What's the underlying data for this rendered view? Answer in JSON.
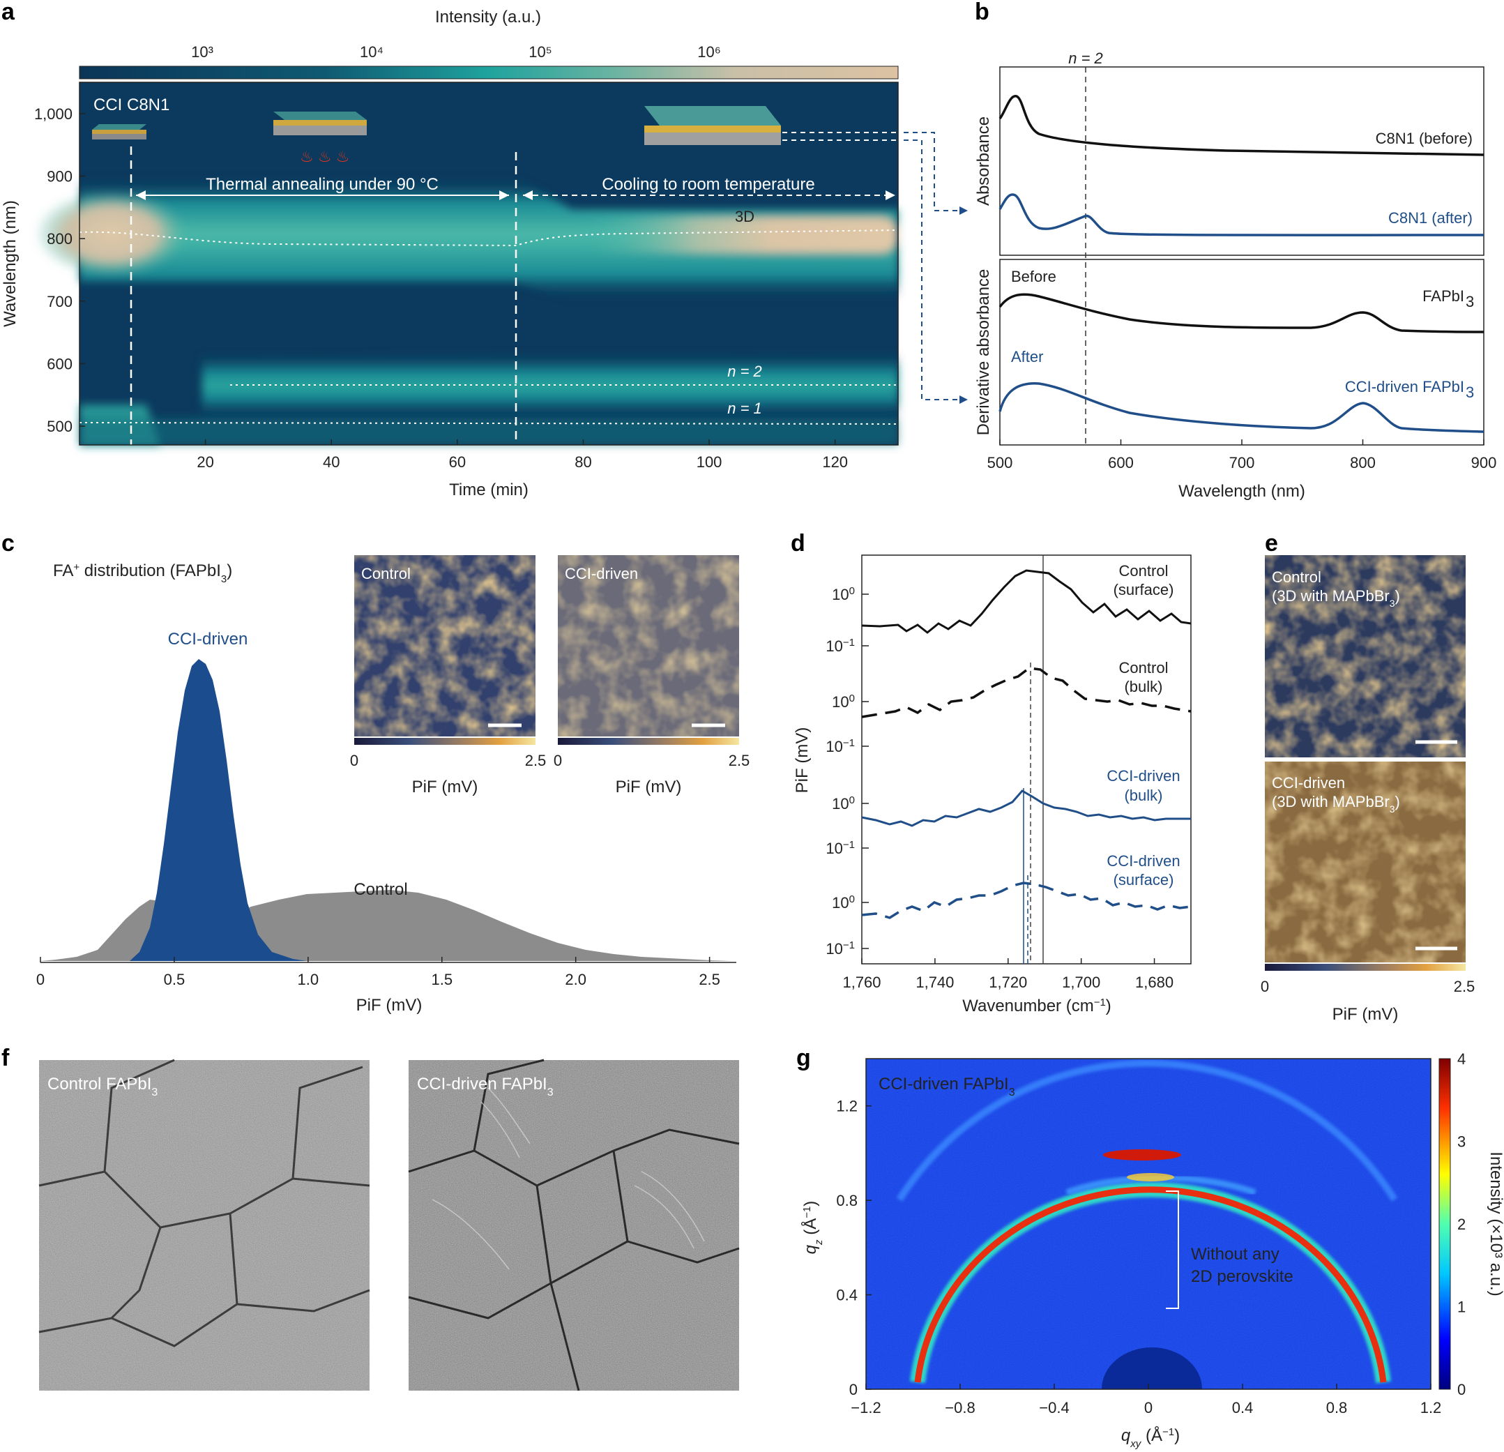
{
  "panel_labels": [
    "a",
    "b",
    "c",
    "d",
    "e",
    "f",
    "g"
  ],
  "panel_a": {
    "colorbar_title": "Intensity (a.u.)",
    "colorbar_ticks": [
      "10³",
      "10⁴",
      "10⁵",
      "10⁶"
    ],
    "sample_label": "CCI C8N1",
    "annealing_label": "Thermal annealing under 90 °C",
    "cooling_label": "Cooling to room temperature",
    "label_3d": "3D",
    "label_n2": "n = 2",
    "label_n1": "n = 1",
    "x_ticks": [
      "20",
      "40",
      "60",
      "80",
      "100",
      "120"
    ],
    "y_ticks": [
      "500",
      "600",
      "700",
      "800",
      "900",
      "1,000"
    ],
    "xlabel": "Time (min)",
    "ylabel": "Wavelength (nm)",
    "annealing_start_min": 10,
    "annealing_end_min": 70,
    "colors": {
      "background": "#0c3a5e",
      "accent": "#1f9ea0",
      "peak": "#d8c3a5"
    }
  },
  "panel_b": {
    "n2_label": "n = 2",
    "n2_wavelength_nm": 572,
    "top_ylabel": "Absorbance",
    "bottom_ylabel": "Derivative absorbance",
    "xlabel": "Wavelength (nm)",
    "x_ticks": [
      "500",
      "600",
      "700",
      "800",
      "900"
    ],
    "curves": {
      "c8n1_before": "C8N1 (before)",
      "c8n1_after": "C8N1 (after)",
      "fapbi3": "FAPbI",
      "cci_fapbi3": "CCI-driven FAPbI"
    },
    "before_label": "Before",
    "after_label": "After",
    "subscript_3": "3"
  },
  "panel_c": {
    "title_prefix": "FA",
    "title_sup": "+",
    "title_mid": " distribution (FAPbI",
    "title_sub": "3",
    "title_end": ")",
    "cci_label": "CCI-driven",
    "control_label": "Control",
    "xlabel": "PiF (mV)",
    "x_ticks": [
      "0",
      "0.5",
      "1.0",
      "1.5",
      "2.0",
      "2.5"
    ],
    "map_labels": [
      "Control",
      "CCI-driven"
    ],
    "cbar_min": "0",
    "cbar_max": "2.5",
    "map_xlabel": "PiF (mV)"
  },
  "panel_d": {
    "ylabel": "PiF (mV)",
    "xlabel_prefix": "Wavenumber (cm",
    "xlabel_sup": "−1",
    "xlabel_end": ")",
    "x_ticks": [
      "1,760",
      "1,740",
      "1,720",
      "1,700",
      "1,680"
    ],
    "y_tick_hi": "10",
    "y_tick_hi_sup": "0",
    "y_tick_lo": "10",
    "y_tick_lo_sup": "−1",
    "labels": [
      [
        "Control",
        "(surface)"
      ],
      [
        "Control",
        "(bulk)"
      ],
      [
        "CCI-driven",
        "(bulk)"
      ],
      [
        "CCI-driven",
        "(surface)"
      ]
    ]
  },
  "panel_e": {
    "maps": [
      {
        "line1": "Control",
        "line2": "(3D with MAPbBr",
        "sub": "3",
        "end": ")"
      },
      {
        "line1": "CCI-driven",
        "line2": "(3D with MAPbBr",
        "sub": "3",
        "end": ")"
      }
    ],
    "cbar_min": "0",
    "cbar_max": "2.5",
    "xlabel": "PiF (mV)"
  },
  "panel_f": {
    "images": [
      {
        "label": "Control FAPbI",
        "sub": "3"
      },
      {
        "label": "CCI-driven FAPbI",
        "sub": "3"
      }
    ]
  },
  "panel_g": {
    "sample_label": "CCI-driven FAPbI",
    "sample_sub": "3",
    "annotation": [
      "Without any",
      "2D perovskite"
    ],
    "x_ticks": [
      "−1.2",
      "−0.8",
      "−0.4",
      "0",
      "0.4",
      "0.8",
      "1.2"
    ],
    "y_ticks": [
      "0",
      "0.4",
      "0.8",
      "1.2"
    ],
    "xlabel": "q",
    "xlabel_sub": "xy",
    "xlabel_unit": " (Å",
    "xlabel_unit_sup": "−1",
    "xlabel_end": ")",
    "ylabel": "q",
    "ylabel_sub": "z",
    "ylabel_unit": " (Å",
    "ylabel_unit_sup": "−1",
    "ylabel_end": ")",
    "cbar_ticks": [
      "0",
      "1",
      "2",
      "3",
      "4"
    ],
    "cbar_label": "Intensity (×10³ a.u.)"
  }
}
